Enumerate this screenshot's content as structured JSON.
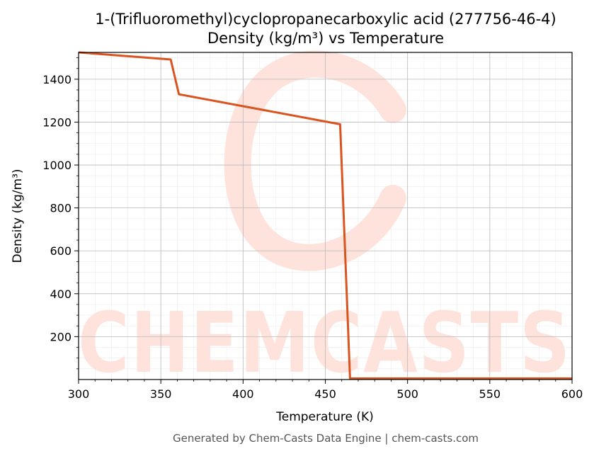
{
  "chart_data": {
    "type": "line",
    "title": "1-(Trifluoromethyl)cyclopropanecarboxylic acid (277756-46-4)",
    "subtitle": "Density (kg/m³) vs Temperature",
    "xlabel": "Temperature (K)",
    "ylabel": "Density (kg/m³)",
    "xlim": [
      300,
      600
    ],
    "ylim": [
      0,
      1525
    ],
    "x_ticks": [
      300,
      350,
      400,
      450,
      500,
      550,
      600
    ],
    "y_ticks": [
      200,
      400,
      600,
      800,
      1000,
      1200,
      1400
    ],
    "grid": true,
    "series": [
      {
        "color": "#d9541e",
        "x": [
          300,
          356,
          361,
          459,
          465,
          600
        ],
        "y": [
          1525,
          1492,
          1330,
          1190,
          5,
          5
        ]
      }
    ]
  },
  "watermark": {
    "text": "CHEMCASTS",
    "color": "#fde3dc"
  },
  "footer": "Generated by Chem-Casts Data Engine | chem-casts.com"
}
